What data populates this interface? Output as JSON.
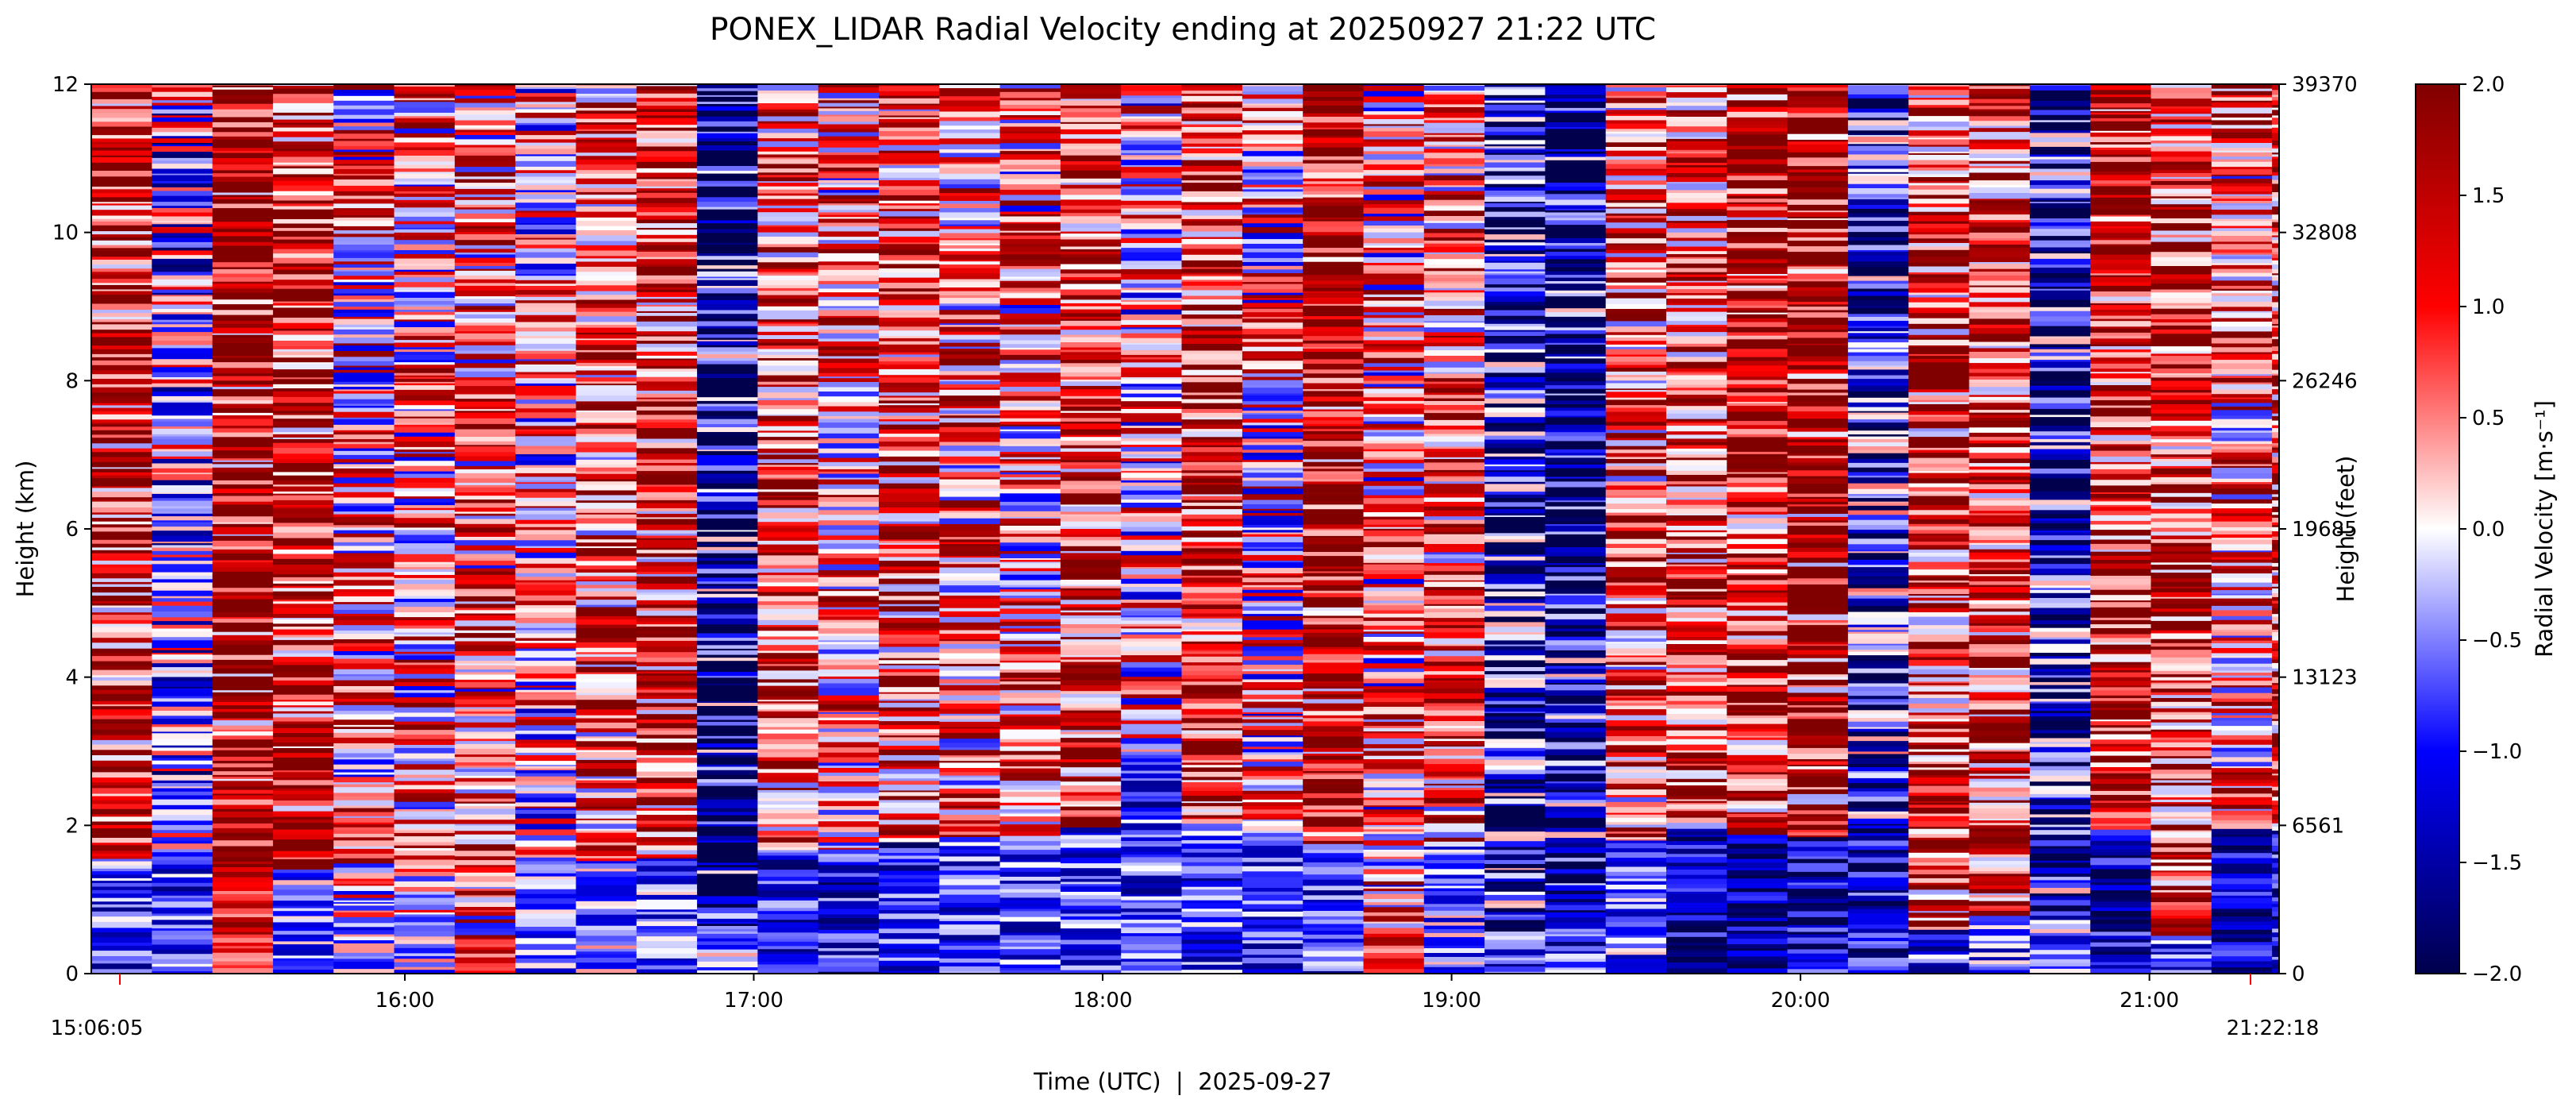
{
  "chart_data": {
    "type": "heatmap",
    "title": "PONEX_LIDAR Radial Velocity ending at 20250927 21:22 UTC",
    "xlabel": "Time (UTC)  |  2025-09-27",
    "ylabel": "Height (km)",
    "y2label": "Height (feet)",
    "colorbar_label": "Radial Velocity [m·s⁻¹]",
    "start_label": "15:06:05",
    "end_label": "21:22:18",
    "x_range": [
      "15:06:05",
      "21:22:18"
    ],
    "ylim": [
      0,
      12
    ],
    "y_ticks": [
      0,
      2,
      4,
      6,
      8,
      10,
      12
    ],
    "y_tick_labels": [
      "0",
      "2",
      "4",
      "6",
      "8",
      "10",
      "12"
    ],
    "y2_ticks": [
      0,
      6561,
      13123,
      19685,
      26246,
      32808,
      39370
    ],
    "y2_tick_labels": [
      "0",
      "6561",
      "13123",
      "19685",
      "26246",
      "32808",
      "39370"
    ],
    "x_ticks": [
      "16:00",
      "17:00",
      "18:00",
      "19:00",
      "20:00",
      "21:00"
    ],
    "x_tick_labels": [
      "16:00",
      "17:00",
      "18:00",
      "19:00",
      "20:00",
      "21:00"
    ],
    "colorbar_range": [
      -2.0,
      2.0
    ],
    "colorbar_ticks": [
      -2.0,
      -1.5,
      -1.0,
      -0.5,
      0.0,
      0.5,
      1.0,
      1.5,
      2.0
    ],
    "colorbar_tick_labels": [
      "−2.0",
      "−1.5",
      "−1.0",
      "−0.5",
      "0.0",
      "0.5",
      "1.0",
      "1.5",
      "2.0"
    ],
    "colormap": "seismic",
    "colormap_colors": [
      "#00004c",
      "#0000ff",
      "#ffffff",
      "#ff0000",
      "#800000"
    ],
    "grid": false,
    "columns": [
      {
        "start": "15:06:05",
        "boundary_layer_top_km": 1.55,
        "lower_mean": -0.8,
        "upper_mean": 1.2
      },
      {
        "start": "15:16:30",
        "boundary_layer_top_km": 1.55,
        "lower_mean": -0.8,
        "upper_mean": -0.3
      },
      {
        "start": "15:26:55",
        "boundary_layer_top_km": 1.4,
        "lower_mean": 1.2,
        "upper_mean": 1.9
      },
      {
        "start": "15:37:20",
        "boundary_layer_top_km": 1.4,
        "lower_mean": -0.6,
        "upper_mean": 1.4
      },
      {
        "start": "15:47:45",
        "boundary_layer_top_km": 0.6,
        "lower_mean": -0.4,
        "upper_mean": 0.4
      },
      {
        "start": "15:58:10",
        "boundary_layer_top_km": 0.55,
        "lower_mean": -0.3,
        "upper_mean": 0.5
      },
      {
        "start": "16:08:35",
        "boundary_layer_top_km": 0.45,
        "lower_mean": 1.2,
        "upper_mean": 0.6
      },
      {
        "start": "16:19:00",
        "boundary_layer_top_km": 1.5,
        "lower_mean": -0.5,
        "upper_mean": 0.2
      },
      {
        "start": "16:29:25",
        "boundary_layer_top_km": 1.5,
        "lower_mean": -0.4,
        "upper_mean": 0.9
      },
      {
        "start": "16:39:50",
        "boundary_layer_top_km": 1.55,
        "lower_mean": -0.6,
        "upper_mean": 1.1
      },
      {
        "start": "16:50:15",
        "boundary_layer_top_km": 0.45,
        "lower_mean": -0.5,
        "upper_mean": -1.8
      },
      {
        "start": "17:00:40",
        "boundary_layer_top_km": 1.6,
        "lower_mean": -1.0,
        "upper_mean": 1.0
      },
      {
        "start": "17:11:05",
        "boundary_layer_top_km": 1.65,
        "lower_mean": -1.1,
        "upper_mean": 0.6
      },
      {
        "start": "17:21:30",
        "boundary_layer_top_km": 1.75,
        "lower_mean": -1.0,
        "upper_mean": 1.0
      },
      {
        "start": "17:31:55",
        "boundary_layer_top_km": 1.8,
        "lower_mean": -0.8,
        "upper_mean": 0.7
      },
      {
        "start": "17:42:20",
        "boundary_layer_top_km": 1.8,
        "lower_mean": -0.8,
        "upper_mean": 0.5
      },
      {
        "start": "17:52:45",
        "boundary_layer_top_km": 1.95,
        "lower_mean": -0.7,
        "upper_mean": 1.2
      },
      {
        "start": "18:03:10",
        "boundary_layer_top_km": 3.0,
        "lower_mean": -0.9,
        "upper_mean": 0.2
      },
      {
        "start": "18:13:35",
        "boundary_layer_top_km": 2.0,
        "lower_mean": -0.8,
        "upper_mean": 1.4
      },
      {
        "start": "18:24:00",
        "boundary_layer_top_km": 1.9,
        "lower_mean": -0.8,
        "upper_mean": 0.3
      },
      {
        "start": "18:34:25",
        "boundary_layer_top_km": 1.75,
        "lower_mean": -0.9,
        "upper_mean": 1.9
      },
      {
        "start": "18:44:50",
        "boundary_layer_top_km": 0.6,
        "lower_mean": 1.2,
        "upper_mean": 0.4
      },
      {
        "start": "18:55:15",
        "boundary_layer_top_km": 1.75,
        "lower_mean": -0.5,
        "upper_mean": 0.8
      },
      {
        "start": "19:05:40",
        "boundary_layer_top_km": 0.5,
        "lower_mean": -0.8,
        "upper_mean": -1.2
      },
      {
        "start": "19:16:05",
        "boundary_layer_top_km": 0.5,
        "lower_mean": -0.9,
        "upper_mean": -1.7
      },
      {
        "start": "19:26:30",
        "boundary_layer_top_km": 1.8,
        "lower_mean": -0.6,
        "upper_mean": 0.9
      },
      {
        "start": "19:36:55",
        "boundary_layer_top_km": 1.95,
        "lower_mean": -1.4,
        "upper_mean": 1.1
      },
      {
        "start": "19:47:20",
        "boundary_layer_top_km": 1.85,
        "lower_mean": -1.5,
        "upper_mean": 1.5
      },
      {
        "start": "19:57:45",
        "boundary_layer_top_km": 1.8,
        "lower_mean": -1.3,
        "upper_mean": 1.9
      },
      {
        "start": "20:08:10",
        "boundary_layer_top_km": 2.0,
        "lower_mean": -1.2,
        "upper_mean": -1.0
      },
      {
        "start": "20:18:35",
        "boundary_layer_top_km": 0.55,
        "lower_mean": -0.9,
        "upper_mean": 1.1
      },
      {
        "start": "20:29:00",
        "boundary_layer_top_km": 0.75,
        "lower_mean": -0.7,
        "upper_mean": 1.2
      },
      {
        "start": "20:39:25",
        "boundary_layer_top_km": 0.65,
        "lower_mean": -0.6,
        "upper_mean": -1.3
      },
      {
        "start": "20:49:50",
        "boundary_layer_top_km": 1.9,
        "lower_mean": -1.3,
        "upper_mean": 1.5
      },
      {
        "start": "21:00:15",
        "boundary_layer_top_km": 0.5,
        "lower_mean": -0.8,
        "upper_mean": 1.3
      },
      {
        "start": "21:10:40",
        "boundary_layer_top_km": 1.95,
        "lower_mean": -1.2,
        "upper_mean": 0.7
      },
      {
        "start": "21:21:05",
        "boundary_layer_top_km": 1.9,
        "lower_mean": -1.1,
        "upper_mean": 1.1
      }
    ]
  }
}
